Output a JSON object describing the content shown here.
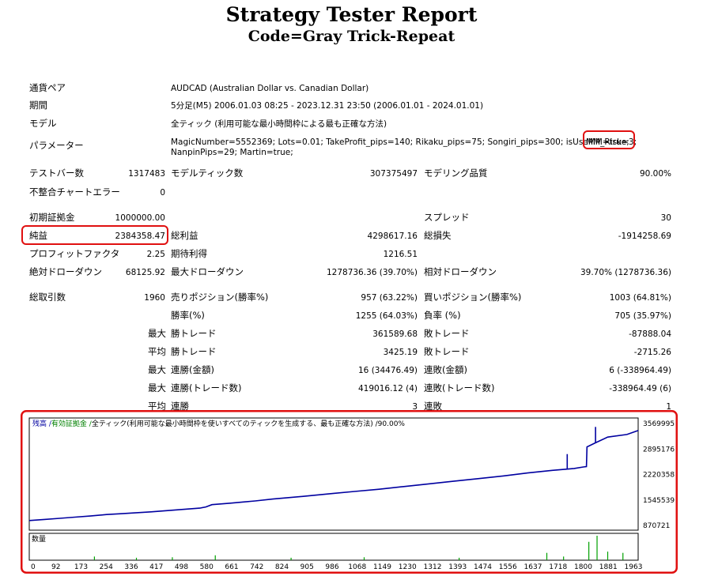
{
  "report": {
    "title": "Strategy Tester Report",
    "subtitle": "Code=Gray Trick-Repeat"
  },
  "info": {
    "symbol_label": "通貨ペア",
    "symbol_value": "AUDCAD (Australian Dollar vs. Canadian Dollar)",
    "period_label": "期間",
    "period_value": "5分足(M5) 2006.01.03 08:25 - 2023.12.31 23:50 (2006.01.01 - 2024.01.01)",
    "model_label": "モデル",
    "model_value": "全ティック (利用可能な最小時間枠による最も正確な方法)",
    "params_label": "パラメーター",
    "params_line1": "MagicNumber=5552369; Lots=0.01; TakeProfit_pips=140; Rikaku_pips=75; Songiri_pips=300; isUseMM=true;",
    "params_highlight": "MM_Risk=3;",
    "params_line2": "NanpinPips=29; Martin=true;"
  },
  "stats": {
    "bars_label": "テストバー数",
    "bars_value": "1317483",
    "ticks_label": "モデルティック数",
    "ticks_value": "307375497",
    "quality_label": "モデリング品質",
    "quality_value": "90.00%",
    "mismatch_label": "不整合チャートエラー",
    "mismatch_value": "0",
    "deposit_label": "初期証拠金",
    "deposit_value": "1000000.00",
    "spread_label": "スプレッド",
    "spread_value": "30",
    "net_label": "純益",
    "net_value": "2384358.47",
    "gross_profit_label": "総利益",
    "gross_profit_value": "4298617.16",
    "gross_loss_label": "総損失",
    "gross_loss_value": "-1914258.69",
    "pf_label": "プロフィットファクタ",
    "pf_value": "2.25",
    "expected_label": "期待利得",
    "expected_value": "1216.51",
    "abs_dd_label": "絶対ドローダウン",
    "abs_dd_value": "68125.92",
    "max_dd_label": "最大ドローダウン",
    "max_dd_value": "1278736.36 (39.70%)",
    "rel_dd_label": "相対ドローダウン",
    "rel_dd_value": "39.70% (1278736.36)",
    "trades_label": "総取引数",
    "trades_value": "1960",
    "short_label": "売りポジション(勝率%)",
    "short_value": "957 (63.22%)",
    "long_label": "買いポジション(勝率%)",
    "long_value": "1003 (64.81%)",
    "winrate_label": "勝率(%)",
    "winrate_value": "1255 (64.03%)",
    "lossrate_label": "負率 (%)",
    "lossrate_value": "705 (35.97%)",
    "max_prefix": "最大",
    "avg_prefix": "平均",
    "max_win_label": "勝トレード",
    "max_win_value": "361589.68",
    "max_loss_label": "敗トレード",
    "max_loss_value": "-87888.04",
    "avg_win_label": "勝トレード",
    "avg_win_value": "3425.19",
    "avg_loss_label": "敗トレード",
    "avg_loss_value": "-2715.26",
    "cons_win_amt_label": "連勝(金額)",
    "cons_win_amt_value": "16 (34476.49)",
    "cons_loss_amt_label": "連敗(金額)",
    "cons_loss_amt_value": "6 (-338964.49)",
    "cons_win_cnt_label": "連勝(トレード数)",
    "cons_win_cnt_value": "419016.12 (4)",
    "cons_loss_cnt_label": "連敗(トレード数)",
    "cons_loss_cnt_value": "-338964.49 (6)",
    "avg_cons_win_label": "連勝",
    "avg_cons_win_value": "3",
    "avg_cons_loss_label": "連敗",
    "avg_cons_loss_value": "1"
  },
  "colors": {
    "highlight_border": "#e01010",
    "balance_line": "#0000a0",
    "volume_bars": "#00a000",
    "margin_text": "#008000"
  },
  "chart_data": {
    "type": "line",
    "legend": [
      {
        "text": "残高",
        "color": "#0000a0"
      },
      {
        "text": "有効証拠金",
        "color": "#008000"
      },
      {
        "text": "全ティック(利用可能な最小時間枠を使いすべてのティックを生成する、最も正確な方法)",
        "color": "#000000"
      },
      {
        "text": "90.00%",
        "color": "#000000"
      }
    ],
    "volume_label": "数量",
    "xlim": [
      0,
      2000
    ],
    "ylim": [
      870721,
      3569995
    ],
    "y_ticks": [
      "3569995",
      "2895176",
      "2220358",
      "1545539",
      "870721"
    ],
    "x_ticks": [
      "0",
      "92",
      "173",
      "254",
      "336",
      "417",
      "498",
      "580",
      "661",
      "742",
      "824",
      "905",
      "986",
      "1068",
      "1149",
      "1230",
      "1312",
      "1393",
      "1474",
      "1556",
      "1637",
      "1718",
      "1800",
      "1881",
      "1963"
    ],
    "series": [
      {
        "name": "残高",
        "x": [
          0,
          50,
          100,
          150,
          200,
          254,
          300,
          400,
          480,
          560,
          580,
          600,
          661,
          700,
          742,
          800,
          900,
          1000,
          1068,
          1149,
          1230,
          1300,
          1393,
          1474,
          1556,
          1637,
          1718,
          1790,
          1820,
          1830,
          1832,
          1860,
          1900,
          1963,
          2000
        ],
        "y": [
          1000000,
          1030000,
          1060000,
          1090000,
          1120000,
          1160000,
          1180000,
          1230000,
          1280000,
          1330000,
          1360000,
          1420000,
          1460000,
          1490000,
          1520000,
          1570000,
          1640000,
          1720000,
          1770000,
          1830000,
          1900000,
          1960000,
          2040000,
          2110000,
          2180000,
          2260000,
          2330000,
          2380000,
          2420000,
          2430000,
          2950000,
          3060000,
          3210000,
          3280000,
          3384358
        ]
      }
    ],
    "balance_spikes": [
      {
        "x": 1767,
        "y": 2760000
      },
      {
        "x": 1860,
        "y": 3480000
      },
      {
        "x": 1920,
        "y": 3240000
      }
    ],
    "volume": [
      {
        "x": 214,
        "v": 0.15
      },
      {
        "x": 352,
        "v": 0.1
      },
      {
        "x": 470,
        "v": 0.12
      },
      {
        "x": 611,
        "v": 0.2
      },
      {
        "x": 860,
        "v": 0.1
      },
      {
        "x": 1100,
        "v": 0.12
      },
      {
        "x": 1412,
        "v": 0.1
      },
      {
        "x": 1700,
        "v": 0.3
      },
      {
        "x": 1755,
        "v": 0.15
      },
      {
        "x": 1838,
        "v": 0.75
      },
      {
        "x": 1865,
        "v": 1.0
      },
      {
        "x": 1900,
        "v": 0.35
      },
      {
        "x": 1950,
        "v": 0.3
      }
    ]
  }
}
